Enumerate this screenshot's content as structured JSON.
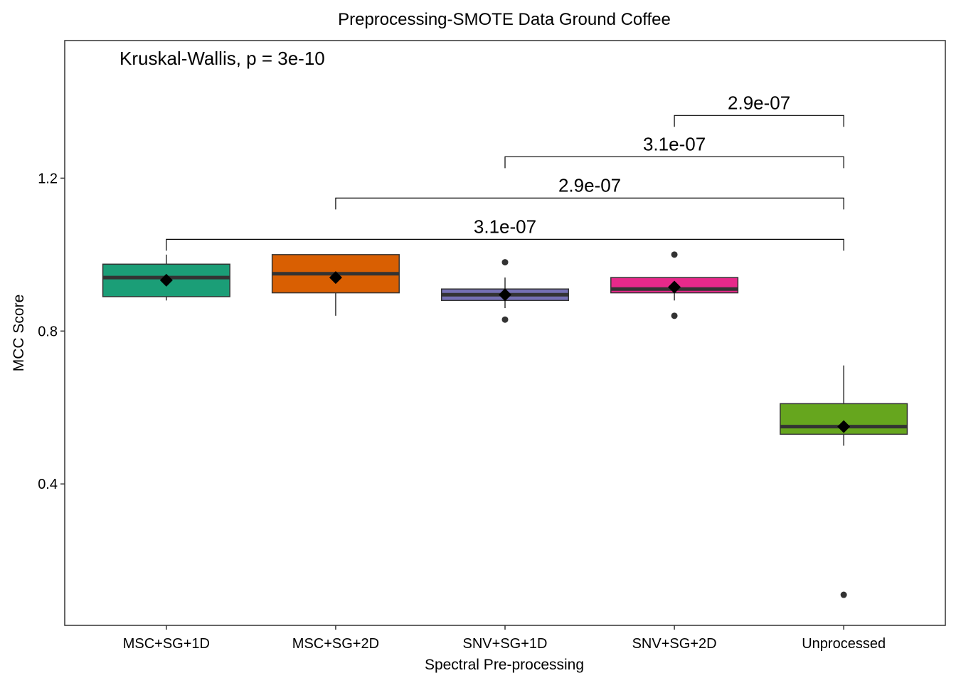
{
  "chart_data": {
    "type": "box",
    "title": "Preprocessing-SMOTE Data Ground Coffee",
    "xlabel": "Spectral Pre-processing",
    "ylabel": "MCC Score",
    "ylim": [
      0.03,
      1.56
    ],
    "yticks": [
      0.4,
      0.8,
      1.2
    ],
    "ytick_labels": [
      "0.4",
      "0.8",
      "1.2"
    ],
    "categories": [
      "MSC+SG+1D",
      "MSC+SG+2D",
      "SNV+SG+1D",
      "SNV+SG+2D",
      "Unprocessed"
    ],
    "colors": [
      "#1b9e77",
      "#d95f02",
      "#7570b3",
      "#e7298a",
      "#66a61e"
    ],
    "boxes": [
      {
        "q1": 0.89,
        "median": 0.94,
        "q3": 0.975,
        "whisker_low": 0.88,
        "whisker_high": 1.0,
        "mean": 0.933,
        "outliers": []
      },
      {
        "q1": 0.9,
        "median": 0.95,
        "q3": 1.0,
        "whisker_low": 0.84,
        "whisker_high": 1.0,
        "mean": 0.94,
        "outliers": []
      },
      {
        "q1": 0.88,
        "median": 0.895,
        "q3": 0.91,
        "whisker_low": 0.86,
        "whisker_high": 0.94,
        "mean": 0.895,
        "outliers": [
          0.98,
          0.83
        ]
      },
      {
        "q1": 0.9,
        "median": 0.91,
        "q3": 0.94,
        "whisker_low": 0.88,
        "whisker_high": 0.94,
        "mean": 0.915,
        "outliers": [
          1.0,
          0.84
        ]
      },
      {
        "q1": 0.53,
        "median": 0.55,
        "q3": 0.61,
        "whisker_low": 0.5,
        "whisker_high": 0.71,
        "mean": 0.55,
        "outliers": [
          0.11
        ]
      }
    ],
    "kruskal_label": "Kruskal-Wallis, p = 3e-10",
    "comparisons": [
      {
        "from": 0,
        "to": 4,
        "y": 1.04,
        "label": "3.1e-07"
      },
      {
        "from": 1,
        "to": 4,
        "y": 1.148,
        "label": "2.9e-07"
      },
      {
        "from": 2,
        "to": 4,
        "y": 1.256,
        "label": "3.1e-07"
      },
      {
        "from": 3,
        "to": 4,
        "y": 1.364,
        "label": "2.9e-07"
      }
    ],
    "grid": false,
    "legend": "none"
  }
}
